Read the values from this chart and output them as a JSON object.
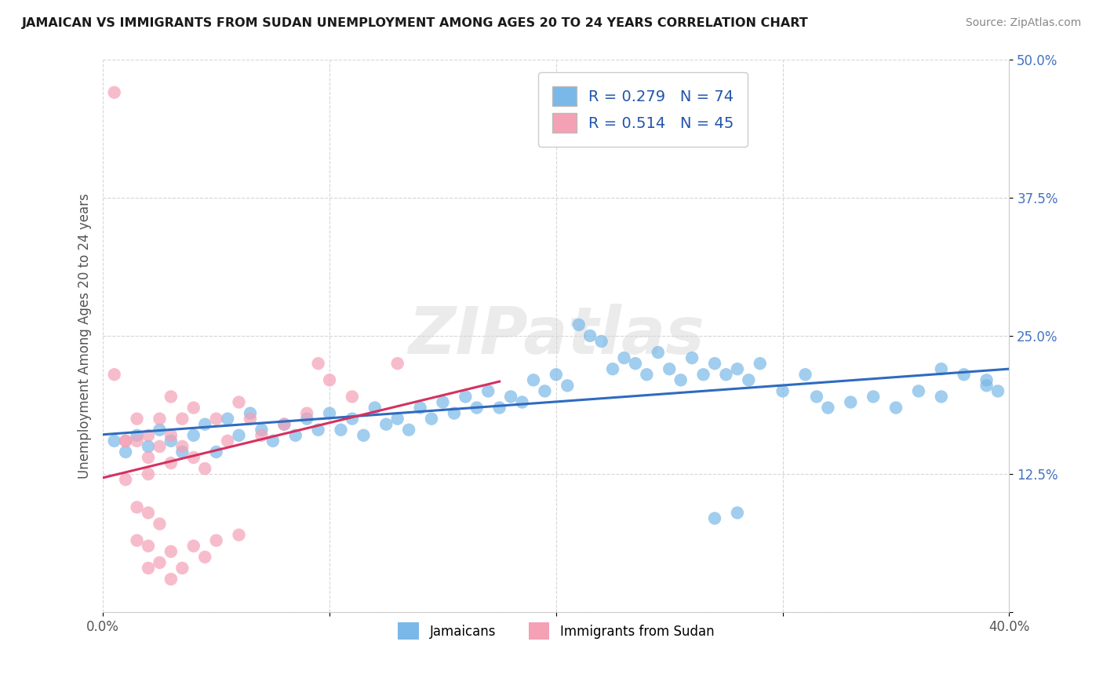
{
  "title": "JAMAICAN VS IMMIGRANTS FROM SUDAN UNEMPLOYMENT AMONG AGES 20 TO 24 YEARS CORRELATION CHART",
  "source": "Source: ZipAtlas.com",
  "ylabel": "Unemployment Among Ages 20 to 24 years",
  "xlim": [
    0.0,
    0.4
  ],
  "ylim": [
    0.0,
    0.5
  ],
  "jamaican_color": "#7ab8e8",
  "sudan_color": "#f4a0b5",
  "trendline_blue": "#2f6bbf",
  "trendline_pink": "#d63060",
  "watermark_text": "ZIPatlas",
  "r_jamaican": "0.279",
  "n_jamaican": "74",
  "r_sudan": "0.514",
  "n_sudan": "45",
  "blue_label": "Jamaicans",
  "pink_label": "Immigrants from Sudan",
  "legend_text_color": "#2255aa",
  "title_color": "#1a1a1a",
  "source_color": "#888888",
  "ytick_color": "#4472c4",
  "xtick_color": "#555555",
  "grid_color": "#cccccc",
  "jamaican_pts": [
    [
      0.005,
      0.155
    ],
    [
      0.01,
      0.145
    ],
    [
      0.015,
      0.16
    ],
    [
      0.02,
      0.15
    ],
    [
      0.025,
      0.165
    ],
    [
      0.03,
      0.155
    ],
    [
      0.035,
      0.145
    ],
    [
      0.04,
      0.16
    ],
    [
      0.045,
      0.17
    ],
    [
      0.05,
      0.145
    ],
    [
      0.055,
      0.175
    ],
    [
      0.06,
      0.16
    ],
    [
      0.065,
      0.18
    ],
    [
      0.07,
      0.165
    ],
    [
      0.075,
      0.155
    ],
    [
      0.08,
      0.17
    ],
    [
      0.085,
      0.16
    ],
    [
      0.09,
      0.175
    ],
    [
      0.095,
      0.165
    ],
    [
      0.1,
      0.18
    ],
    [
      0.105,
      0.165
    ],
    [
      0.11,
      0.175
    ],
    [
      0.115,
      0.16
    ],
    [
      0.12,
      0.185
    ],
    [
      0.125,
      0.17
    ],
    [
      0.13,
      0.175
    ],
    [
      0.135,
      0.165
    ],
    [
      0.14,
      0.185
    ],
    [
      0.145,
      0.175
    ],
    [
      0.15,
      0.19
    ],
    [
      0.155,
      0.18
    ],
    [
      0.16,
      0.195
    ],
    [
      0.165,
      0.185
    ],
    [
      0.17,
      0.2
    ],
    [
      0.175,
      0.185
    ],
    [
      0.18,
      0.195
    ],
    [
      0.185,
      0.19
    ],
    [
      0.19,
      0.21
    ],
    [
      0.195,
      0.2
    ],
    [
      0.2,
      0.215
    ],
    [
      0.205,
      0.205
    ],
    [
      0.21,
      0.26
    ],
    [
      0.215,
      0.25
    ],
    [
      0.22,
      0.245
    ],
    [
      0.225,
      0.22
    ],
    [
      0.23,
      0.23
    ],
    [
      0.235,
      0.225
    ],
    [
      0.24,
      0.215
    ],
    [
      0.245,
      0.235
    ],
    [
      0.25,
      0.22
    ],
    [
      0.255,
      0.21
    ],
    [
      0.26,
      0.23
    ],
    [
      0.265,
      0.215
    ],
    [
      0.27,
      0.225
    ],
    [
      0.275,
      0.215
    ],
    [
      0.28,
      0.22
    ],
    [
      0.285,
      0.21
    ],
    [
      0.29,
      0.225
    ],
    [
      0.3,
      0.2
    ],
    [
      0.31,
      0.215
    ],
    [
      0.315,
      0.195
    ],
    [
      0.32,
      0.185
    ],
    [
      0.33,
      0.19
    ],
    [
      0.34,
      0.195
    ],
    [
      0.35,
      0.185
    ],
    [
      0.36,
      0.2
    ],
    [
      0.37,
      0.195
    ],
    [
      0.38,
      0.215
    ],
    [
      0.39,
      0.205
    ],
    [
      0.395,
      0.2
    ],
    [
      0.27,
      0.085
    ],
    [
      0.28,
      0.09
    ],
    [
      0.37,
      0.22
    ],
    [
      0.39,
      0.21
    ]
  ],
  "sudan_pts": [
    [
      0.005,
      0.47
    ],
    [
      0.005,
      0.215
    ],
    [
      0.01,
      0.155
    ],
    [
      0.01,
      0.12
    ],
    [
      0.01,
      0.155
    ],
    [
      0.015,
      0.175
    ],
    [
      0.015,
      0.155
    ],
    [
      0.015,
      0.095
    ],
    [
      0.015,
      0.065
    ],
    [
      0.02,
      0.16
    ],
    [
      0.02,
      0.14
    ],
    [
      0.02,
      0.125
    ],
    [
      0.02,
      0.09
    ],
    [
      0.02,
      0.06
    ],
    [
      0.02,
      0.04
    ],
    [
      0.025,
      0.175
    ],
    [
      0.025,
      0.15
    ],
    [
      0.025,
      0.08
    ],
    [
      0.025,
      0.045
    ],
    [
      0.03,
      0.195
    ],
    [
      0.03,
      0.16
    ],
    [
      0.03,
      0.135
    ],
    [
      0.03,
      0.055
    ],
    [
      0.03,
      0.03
    ],
    [
      0.035,
      0.175
    ],
    [
      0.035,
      0.15
    ],
    [
      0.035,
      0.04
    ],
    [
      0.04,
      0.185
    ],
    [
      0.04,
      0.14
    ],
    [
      0.04,
      0.06
    ],
    [
      0.045,
      0.13
    ],
    [
      0.045,
      0.05
    ],
    [
      0.05,
      0.175
    ],
    [
      0.05,
      0.065
    ],
    [
      0.055,
      0.155
    ],
    [
      0.06,
      0.19
    ],
    [
      0.06,
      0.07
    ],
    [
      0.065,
      0.175
    ],
    [
      0.07,
      0.16
    ],
    [
      0.08,
      0.17
    ],
    [
      0.09,
      0.18
    ],
    [
      0.095,
      0.225
    ],
    [
      0.1,
      0.21
    ],
    [
      0.11,
      0.195
    ],
    [
      0.13,
      0.225
    ]
  ]
}
